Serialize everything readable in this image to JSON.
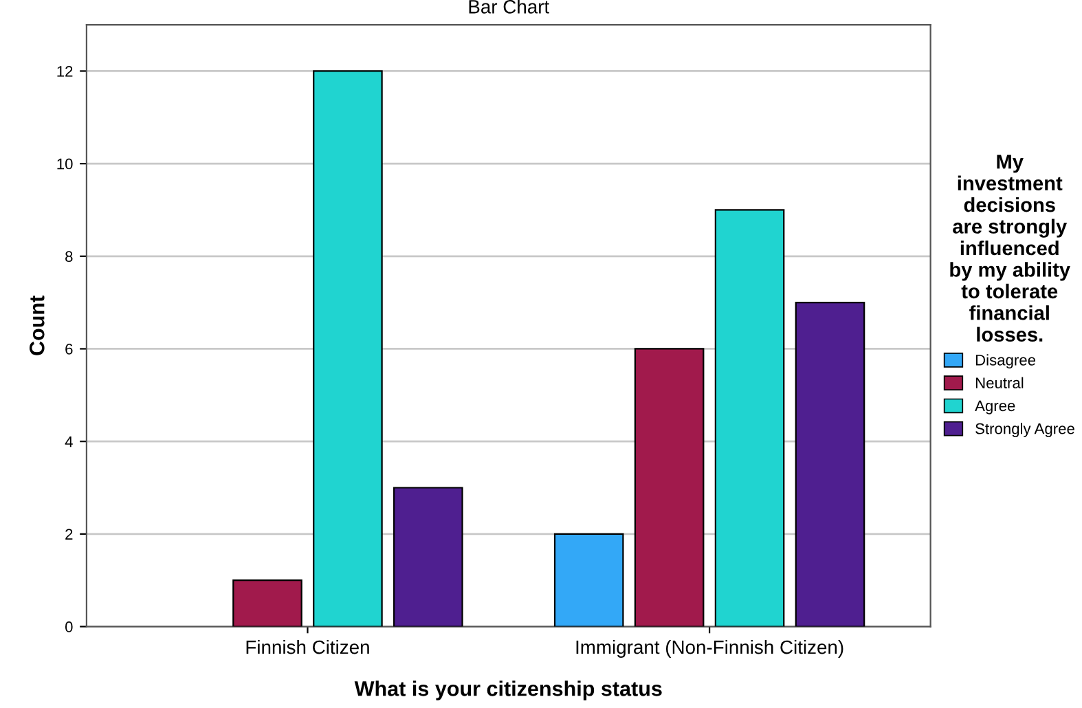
{
  "chart_data": {
    "type": "bar",
    "title": "Bar Chart",
    "xlabel": "What is your citizenship status",
    "ylabel": "Count",
    "legend_title": "My\ninvestment\ndecisions\nare strongly\ninfluenced\nby my ability\nto tolerate\nfinancial\nlosses.",
    "categories": [
      "Finnish Citizen",
      "Immigrant (Non-Finnish Citizen)"
    ],
    "series": [
      {
        "name": "Disagree",
        "color": "#33a8f7",
        "values": [
          null,
          2
        ]
      },
      {
        "name": "Neutral",
        "color": "#a11a4c",
        "values": [
          1,
          6
        ]
      },
      {
        "name": "Agree",
        "color": "#20d4d0",
        "values": [
          12,
          9
        ]
      },
      {
        "name": "Strongly Agree",
        "color": "#4f1f90",
        "values": [
          3,
          7
        ]
      }
    ],
    "ylim": [
      0,
      13
    ],
    "yticks": [
      0,
      2,
      4,
      6,
      8,
      10,
      12
    ],
    "grid": "y",
    "legend": "right"
  }
}
